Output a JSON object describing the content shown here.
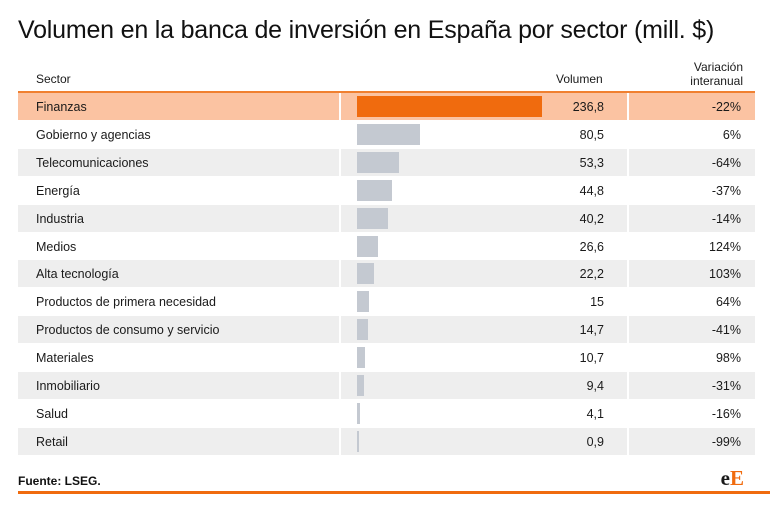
{
  "title": "Volumen en la banca de inversión en España por sector (mill. $)",
  "header": {
    "sector": "Sector",
    "volume": "Volumen",
    "variation": [
      "Variación",
      "interanual"
    ]
  },
  "chart_data": {
    "type": "bar",
    "title": "Volumen en la banca de inversión en España por sector (mill. $)",
    "categories": [
      "Finanzas",
      "Gobierno y agencias",
      "Telecomunicaciones",
      "Energía",
      "Industria",
      "Medios",
      "Alta tecnología",
      "Productos de primera necesidad",
      "Productos de consumo y servicio",
      "Materiales",
      "Inmobiliario",
      "Salud",
      "Retail"
    ],
    "values": [
      236.8,
      80.5,
      53.3,
      44.8,
      40.2,
      26.6,
      22.2,
      15,
      14.7,
      10.7,
      9.4,
      4.1,
      0.9
    ],
    "value_labels": [
      "236,8",
      "80,5",
      "53,3",
      "44,8",
      "40,2",
      "26,6",
      "22,2",
      "15",
      "14,7",
      "10,7",
      "9,4",
      "4,1",
      "0,9"
    ],
    "variation": [
      "-22%",
      "6%",
      "-64%",
      "-37%",
      "-14%",
      "124%",
      "103%",
      "64%",
      "-41%",
      "98%",
      "-31%",
      "-16%",
      "-99%"
    ],
    "highlight_index": 0,
    "colors": {
      "highlight_bar": "#f06b0e",
      "highlight_row": "#fbc3a2",
      "bar": "#c4c9d1",
      "shade_row": "#eeeeee"
    }
  },
  "source": "Fuente: LSEG.",
  "logo": {
    "part1": "e",
    "part2": "E"
  }
}
